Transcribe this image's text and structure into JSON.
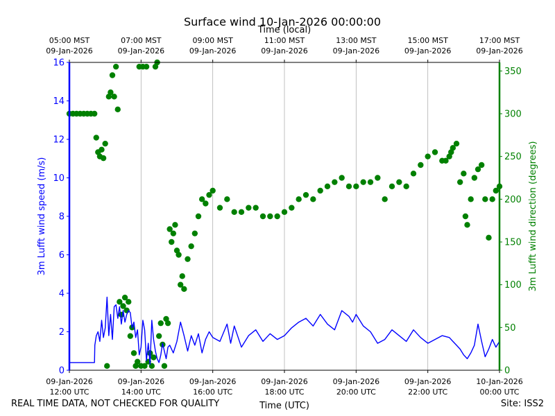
{
  "chart_data": {
    "type": "line",
    "title": "Surface wind 10-Jan-2026 00:00:00",
    "xlabel_bottom": "Time (UTC)",
    "xlabel_top": "Time (local)",
    "ylabel_left": "3m Lufft wind speed (m/s)",
    "ylabel_right": "3m Lufft wind direction (degrees)",
    "xlim_hours_utc": [
      12,
      24
    ],
    "ylim_left": [
      0,
      16
    ],
    "ylim_right": [
      0,
      360
    ],
    "grid": "vertical lines at bottom x ticks",
    "bottom_ticks": [
      {
        "hour": 12,
        "date": "09-Jan-2026",
        "time": "12:00 UTC"
      },
      {
        "hour": 14,
        "date": "09-Jan-2026",
        "time": "14:00 UTC"
      },
      {
        "hour": 16,
        "date": "09-Jan-2026",
        "time": "16:00 UTC"
      },
      {
        "hour": 18,
        "date": "09-Jan-2026",
        "time": "18:00 UTC"
      },
      {
        "hour": 20,
        "date": "09-Jan-2026",
        "time": "20:00 UTC"
      },
      {
        "hour": 22,
        "date": "09-Jan-2026",
        "time": "22:00 UTC"
      },
      {
        "hour": 24,
        "date": "10-Jan-2026",
        "time": "00:00 UTC"
      }
    ],
    "top_ticks": [
      {
        "hour": 12,
        "time": "05:00 MST",
        "date": "09-Jan-2026"
      },
      {
        "hour": 14,
        "time": "07:00 MST",
        "date": "09-Jan-2026"
      },
      {
        "hour": 16,
        "time": "09:00 MST",
        "date": "09-Jan-2026"
      },
      {
        "hour": 18,
        "time": "11:00 MST",
        "date": "09-Jan-2026"
      },
      {
        "hour": 20,
        "time": "13:00 MST",
        "date": "09-Jan-2026"
      },
      {
        "hour": 22,
        "time": "15:00 MST",
        "date": "09-Jan-2026"
      },
      {
        "hour": 24,
        "time": "17:00 MST",
        "date": "09-Jan-2026"
      }
    ],
    "left_ticks": [
      0,
      2,
      4,
      6,
      8,
      10,
      12,
      14,
      16
    ],
    "right_ticks": [
      0,
      50,
      100,
      150,
      200,
      250,
      300,
      350
    ],
    "series": [
      {
        "name": "3m Lufft wind speed (m/s)",
        "axis": "left",
        "style": "line",
        "color": "#0000ff",
        "x": [
          12.0,
          12.5,
          12.7,
          12.71,
          12.75,
          12.8,
          12.85,
          12.9,
          12.95,
          13.0,
          13.05,
          13.1,
          13.15,
          13.2,
          13.25,
          13.3,
          13.35,
          13.4,
          13.45,
          13.5,
          13.55,
          13.6,
          13.65,
          13.7,
          13.75,
          13.8,
          13.85,
          13.9,
          13.95,
          14.0,
          14.05,
          14.1,
          14.15,
          14.2,
          14.25,
          14.3,
          14.35,
          14.4,
          14.45,
          14.5,
          14.55,
          14.6,
          14.65,
          14.7,
          14.75,
          14.8,
          14.9,
          15.0,
          15.1,
          15.2,
          15.3,
          15.4,
          15.5,
          15.6,
          15.7,
          15.8,
          15.9,
          16.0,
          16.2,
          16.4,
          16.5,
          16.6,
          16.8,
          17.0,
          17.2,
          17.4,
          17.6,
          17.8,
          18.0,
          18.2,
          18.4,
          18.6,
          18.8,
          19.0,
          19.2,
          19.4,
          19.6,
          19.8,
          19.9,
          20.0,
          20.2,
          20.4,
          20.6,
          20.8,
          21.0,
          21.2,
          21.4,
          21.6,
          21.8,
          22.0,
          22.2,
          22.4,
          22.6,
          22.7,
          22.8,
          22.9,
          23.0,
          23.1,
          23.2,
          23.3,
          23.4,
          23.5,
          23.6,
          23.7,
          23.8,
          23.9,
          24.0
        ],
        "values": [
          0.4,
          0.4,
          0.4,
          1.3,
          1.8,
          2.0,
          1.5,
          2.6,
          1.7,
          2.2,
          3.8,
          1.8,
          2.9,
          1.6,
          3.3,
          3.4,
          2.7,
          3.3,
          2.4,
          3.1,
          2.5,
          2.9,
          3.1,
          3.0,
          2.2,
          2.5,
          1.7,
          2.1,
          0.8,
          1.2,
          2.6,
          2.1,
          0.5,
          1.4,
          0.3,
          2.6,
          1.6,
          1.0,
          0.6,
          0.4,
          0.8,
          1.4,
          1.0,
          0.6,
          1.2,
          1.3,
          0.9,
          1.5,
          2.5,
          1.8,
          1.0,
          1.8,
          1.3,
          1.9,
          0.9,
          1.6,
          2.0,
          1.7,
          1.5,
          2.4,
          1.4,
          2.3,
          1.2,
          1.8,
          2.1,
          1.5,
          1.9,
          1.6,
          1.8,
          2.2,
          2.5,
          2.7,
          2.3,
          2.9,
          2.4,
          2.1,
          3.1,
          2.8,
          2.5,
          2.9,
          2.3,
          2.0,
          1.4,
          1.6,
          2.1,
          1.8,
          1.5,
          2.1,
          1.7,
          1.4,
          1.6,
          1.8,
          1.7,
          1.5,
          1.3,
          1.1,
          0.8,
          0.6,
          0.9,
          1.3,
          2.4,
          1.5,
          0.7,
          1.1,
          1.6,
          1.2,
          1.5
        ]
      },
      {
        "name": "3m Lufft wind direction (degrees)",
        "axis": "right",
        "style": "scatter",
        "color": "#008000",
        "x": [
          12.0,
          12.1,
          12.2,
          12.3,
          12.4,
          12.5,
          12.6,
          12.7,
          12.75,
          12.8,
          12.85,
          12.9,
          12.95,
          13.0,
          13.05,
          13.1,
          13.15,
          13.2,
          13.25,
          13.3,
          13.35,
          13.4,
          13.45,
          13.5,
          13.55,
          13.6,
          13.65,
          13.7,
          13.75,
          13.8,
          13.85,
          13.9,
          13.95,
          14.0,
          14.05,
          14.1,
          14.15,
          14.2,
          14.25,
          14.3,
          14.35,
          14.4,
          14.45,
          14.5,
          14.55,
          14.6,
          14.65,
          14.7,
          14.75,
          14.8,
          14.85,
          14.9,
          14.95,
          15.0,
          15.05,
          15.1,
          15.15,
          15.2,
          15.3,
          15.4,
          15.5,
          15.6,
          15.7,
          15.8,
          15.9,
          16.0,
          16.2,
          16.4,
          16.6,
          16.8,
          17.0,
          17.2,
          17.4,
          17.6,
          17.8,
          18.0,
          18.2,
          18.4,
          18.6,
          18.8,
          19.0,
          19.2,
          19.4,
          19.6,
          19.8,
          20.0,
          20.2,
          20.4,
          20.6,
          20.8,
          21.0,
          21.2,
          21.4,
          21.6,
          21.8,
          22.0,
          22.2,
          22.4,
          22.5,
          22.6,
          22.65,
          22.7,
          22.8,
          22.9,
          23.0,
          23.05,
          23.1,
          23.2,
          23.3,
          23.4,
          23.5,
          23.6,
          23.7,
          23.8,
          23.9,
          24.0
        ],
        "values": [
          300,
          300,
          300,
          300,
          300,
          300,
          300,
          300,
          272,
          255,
          250,
          258,
          248,
          265,
          5,
          320,
          325,
          345,
          320,
          355,
          305,
          80,
          65,
          75,
          85,
          70,
          80,
          40,
          50,
          20,
          5,
          10,
          355,
          5,
          355,
          5,
          355,
          10,
          20,
          5,
          15,
          355,
          360,
          40,
          55,
          30,
          5,
          60,
          55,
          165,
          150,
          160,
          170,
          140,
          135,
          100,
          110,
          95,
          130,
          145,
          160,
          180,
          200,
          195,
          205,
          210,
          190,
          200,
          185,
          185,
          190,
          190,
          180,
          180,
          180,
          185,
          190,
          200,
          205,
          200,
          210,
          215,
          220,
          225,
          215,
          215,
          220,
          220,
          225,
          200,
          215,
          220,
          215,
          230,
          240,
          250,
          255,
          245,
          245,
          250,
          255,
          260,
          265,
          220,
          230,
          180,
          170,
          200,
          225,
          235,
          240,
          200,
          155,
          200,
          210,
          215
        ]
      }
    ]
  },
  "footer": {
    "disclaimer": "REAL TIME DATA, NOT CHECKED FOR QUALITY",
    "site": "Site: ISS2"
  }
}
